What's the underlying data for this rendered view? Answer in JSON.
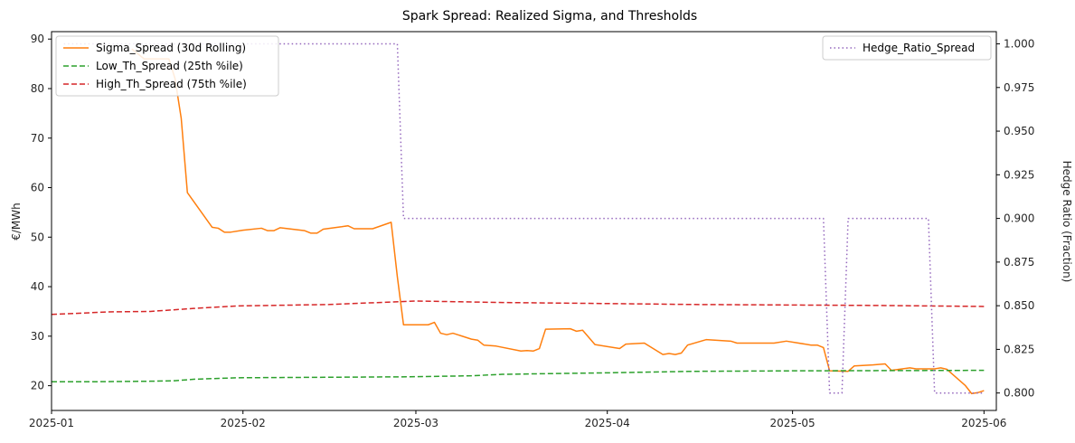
{
  "chart_data": {
    "type": "line",
    "title": "Spark Spread: Realized Sigma, and Thresholds",
    "xlabel": "",
    "ylabel": "€/MWh",
    "y2label": "Hedge Ratio (Fraction)",
    "xlim": [
      "2025-01-01",
      "2025-06-03"
    ],
    "ylim": [
      15,
      91.5
    ],
    "y2lim": [
      0.79,
      1.007
    ],
    "x_ticks": [
      "2025-01-01",
      "2025-02-01",
      "2025-03-01",
      "2025-04-01",
      "2025-05-01",
      "2025-06-01"
    ],
    "x_tick_labels": [
      "2025-01",
      "2025-02",
      "2025-03",
      "2025-04",
      "2025-05",
      "2025-06"
    ],
    "y_ticks": [
      20,
      30,
      40,
      50,
      60,
      70,
      80,
      90
    ],
    "y_tick_labels": [
      "20",
      "30",
      "40",
      "50",
      "60",
      "70",
      "80",
      "90"
    ],
    "y2_ticks": [
      0.8,
      0.825,
      0.85,
      0.875,
      0.9,
      0.925,
      0.95,
      0.975,
      1.0
    ],
    "y2_tick_labels": [
      "0.800",
      "0.825",
      "0.850",
      "0.875",
      "0.900",
      "0.925",
      "0.950",
      "0.975",
      "1.000"
    ],
    "grid": false,
    "legend_left": "upper-left",
    "legend_right": "upper-right",
    "series": [
      {
        "name": "Sigma_Spread (30d Rolling)",
        "axis": "left",
        "color": "#ff7f0e",
        "dash": "solid",
        "points": [
          [
            "2025-01-14",
            88
          ],
          [
            "2025-01-16",
            86
          ],
          [
            "2025-01-18",
            86
          ],
          [
            "2025-01-20",
            86
          ],
          [
            "2025-01-21",
            82
          ],
          [
            "2025-01-22",
            74
          ],
          [
            "2025-01-23",
            59
          ],
          [
            "2025-01-25",
            55.5
          ],
          [
            "2025-01-27",
            52
          ],
          [
            "2025-01-28",
            51.8
          ],
          [
            "2025-01-29",
            51
          ],
          [
            "2025-01-30",
            51
          ],
          [
            "2025-02-01",
            51.4
          ],
          [
            "2025-02-04",
            51.8
          ],
          [
            "2025-02-05",
            51.3
          ],
          [
            "2025-02-06",
            51.3
          ],
          [
            "2025-02-07",
            51.9
          ],
          [
            "2025-02-11",
            51.3
          ],
          [
            "2025-02-12",
            50.8
          ],
          [
            "2025-02-13",
            50.8
          ],
          [
            "2025-02-14",
            51.6
          ],
          [
            "2025-02-17",
            52.1
          ],
          [
            "2025-02-18",
            52.3
          ],
          [
            "2025-02-19",
            51.7
          ],
          [
            "2025-02-22",
            51.7
          ],
          [
            "2025-02-25",
            53
          ],
          [
            "2025-02-26",
            42
          ],
          [
            "2025-02-27",
            32.3
          ],
          [
            "2025-03-03",
            32.3
          ],
          [
            "2025-03-04",
            32.8
          ],
          [
            "2025-03-05",
            30.6
          ],
          [
            "2025-03-06",
            30.3
          ],
          [
            "2025-03-07",
            30.6
          ],
          [
            "2025-03-10",
            29.4
          ],
          [
            "2025-03-11",
            29.2
          ],
          [
            "2025-03-12",
            28.2
          ],
          [
            "2025-03-14",
            28
          ],
          [
            "2025-03-18",
            27
          ],
          [
            "2025-03-19",
            27.1
          ],
          [
            "2025-03-20",
            27
          ],
          [
            "2025-03-21",
            27.5
          ],
          [
            "2025-03-22",
            31.4
          ],
          [
            "2025-03-26",
            31.5
          ],
          [
            "2025-03-27",
            31
          ],
          [
            "2025-03-28",
            31.2
          ],
          [
            "2025-03-30",
            28.3
          ],
          [
            "2025-04-03",
            27.5
          ],
          [
            "2025-04-04",
            28.4
          ],
          [
            "2025-04-07",
            28.6
          ],
          [
            "2025-04-10",
            26.3
          ],
          [
            "2025-04-11",
            26.5
          ],
          [
            "2025-04-12",
            26.3
          ],
          [
            "2025-04-13",
            26.6
          ],
          [
            "2025-04-14",
            28.2
          ],
          [
            "2025-04-17",
            29.3
          ],
          [
            "2025-04-21",
            29
          ],
          [
            "2025-04-22",
            28.6
          ],
          [
            "2025-04-28",
            28.6
          ],
          [
            "2025-04-30",
            29
          ],
          [
            "2025-05-04",
            28.2
          ],
          [
            "2025-05-05",
            28.2
          ],
          [
            "2025-05-06",
            27.7
          ],
          [
            "2025-05-07",
            23
          ],
          [
            "2025-05-10",
            22.9
          ],
          [
            "2025-05-11",
            24
          ],
          [
            "2025-05-14",
            24.2
          ],
          [
            "2025-05-16",
            24.4
          ],
          [
            "2025-05-17",
            23.1
          ],
          [
            "2025-05-20",
            23.6
          ],
          [
            "2025-05-21",
            23.4
          ],
          [
            "2025-05-24",
            23.4
          ],
          [
            "2025-05-25",
            23.6
          ],
          [
            "2025-05-26",
            23.3
          ],
          [
            "2025-05-29",
            20
          ],
          [
            "2025-05-30",
            18.4
          ],
          [
            "2025-05-31",
            18.6
          ],
          [
            "2025-06-01",
            19
          ]
        ]
      },
      {
        "name": "Low_Th_Spread (25th %ile)",
        "axis": "left",
        "color": "#2ca02c",
        "dash": "dashed",
        "points": [
          [
            "2025-01-01",
            20.8
          ],
          [
            "2025-01-08",
            20.8
          ],
          [
            "2025-01-17",
            20.9
          ],
          [
            "2025-01-21",
            21.0
          ],
          [
            "2025-01-24",
            21.3
          ],
          [
            "2025-01-31",
            21.6
          ],
          [
            "2025-02-28",
            21.8
          ],
          [
            "2025-03-10",
            22.0
          ],
          [
            "2025-03-15",
            22.3
          ],
          [
            "2025-04-01",
            22.6
          ],
          [
            "2025-04-15",
            22.9
          ],
          [
            "2025-05-01",
            23.0
          ],
          [
            "2025-06-01",
            23.1
          ]
        ]
      },
      {
        "name": "High_Th_Spread (75th %ile)",
        "axis": "left",
        "color": "#d62728",
        "dash": "dashed",
        "points": [
          [
            "2025-01-01",
            34.4
          ],
          [
            "2025-01-05",
            34.6
          ],
          [
            "2025-01-10",
            34.9
          ],
          [
            "2025-01-17",
            35.0
          ],
          [
            "2025-01-24",
            35.6
          ],
          [
            "2025-01-31",
            36.1
          ],
          [
            "2025-02-15",
            36.4
          ],
          [
            "2025-03-01",
            37.1
          ],
          [
            "2025-03-15",
            36.8
          ],
          [
            "2025-03-31",
            36.6
          ],
          [
            "2025-04-15",
            36.4
          ],
          [
            "2025-05-15",
            36.2
          ],
          [
            "2025-06-01",
            36.0
          ]
        ]
      },
      {
        "name": "Hedge_Ratio_Spread",
        "axis": "right",
        "color": "#9467bd",
        "dash": "dotted",
        "points": [
          [
            "2025-01-03",
            1.0
          ],
          [
            "2025-02-26",
            1.0
          ],
          [
            "2025-02-27",
            0.9
          ],
          [
            "2025-05-06",
            0.9
          ],
          [
            "2025-05-07",
            0.8
          ],
          [
            "2025-05-09",
            0.8
          ],
          [
            "2025-05-10",
            0.9
          ],
          [
            "2025-05-23",
            0.9
          ],
          [
            "2025-05-24",
            0.8
          ],
          [
            "2025-06-01",
            0.8
          ]
        ]
      }
    ]
  }
}
